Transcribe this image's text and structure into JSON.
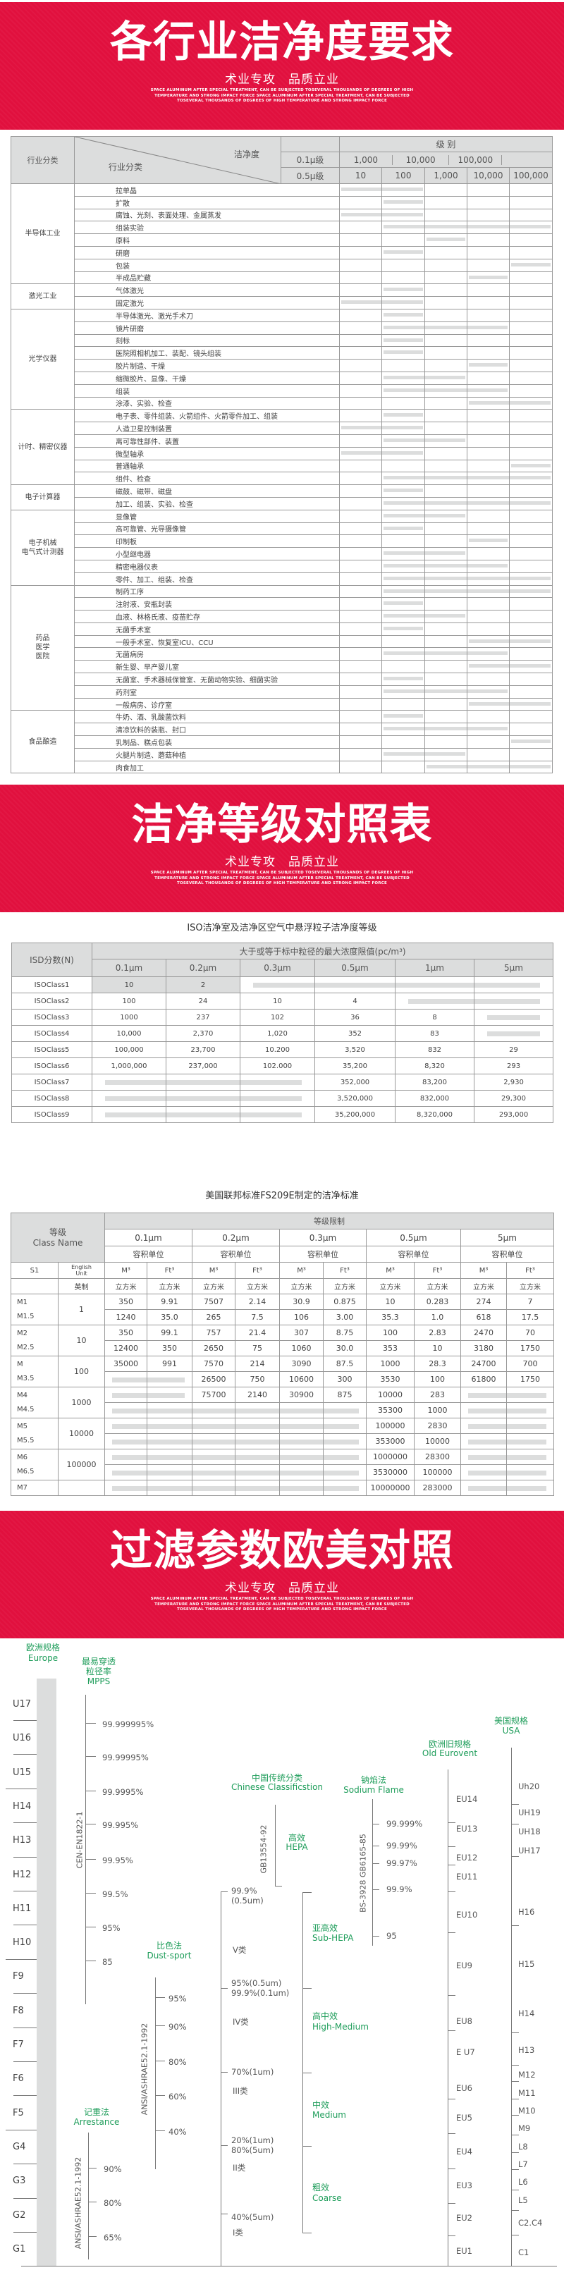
{
  "banner_en": [
    "SPACE ALUMINUM AFTER SPECIAL TREATMENT, CAN BE SUBJECTED TOSEVERAL THOUSANDS OF DEGREES OF HIGH",
    "TEMPERATURE AND STRONG IMPACT FORCE SPACE ALUMINUM AFTER SPECIAL TREATMENT, CAN BE SUBJECTED",
    "TOSEVERAL THOUSANDS OF DEGREES OF HIGH TEMPERATURE AND STRONG IMPACT FORCE"
  ],
  "banner_sub": "术业专攻　品质立业",
  "brand_color": "#e1103e",
  "section1": {
    "title": "各行业洁净度要求",
    "header": {
      "cat": "行业分类",
      "diag_top": "洁净度",
      "diag_bottom": "行业分类",
      "grade": "级 别",
      "row01": "0.1μ级",
      "row05": "0.5μ级",
      "levels01": [
        "1,000",
        "10,000",
        "100,000",
        ""
      ],
      "levels05": [
        "10",
        "100",
        "1,000",
        "10,000",
        "100,000"
      ]
    },
    "categories": [
      {
        "name": "半导体工业",
        "items": [
          {
            "name": "拉单晶",
            "range": [
              "10",
              "100"
            ]
          },
          {
            "name": "扩散",
            "range": [
              "100",
              "100"
            ]
          },
          {
            "name": "腐蚀、光刻、表面处理、金属蒸发",
            "range": [
              "10",
              "100"
            ]
          },
          {
            "name": "组装实验",
            "range": [
              "100",
              "100,000"
            ]
          },
          {
            "name": "原料",
            "range": [
              "1,000",
              "1,000"
            ]
          },
          {
            "name": "研磨",
            "range": [
              "100",
              "100"
            ]
          },
          {
            "name": "包装",
            "range": [
              "100,000",
              "100,000"
            ]
          },
          {
            "name": "半成品贮藏",
            "range": [
              "10,000",
              "10,000"
            ]
          }
        ]
      },
      {
        "name": "激光工业",
        "items": [
          {
            "name": "气体激光",
            "range": [
              "100",
              "100"
            ]
          },
          {
            "name": "固定激光",
            "range": [
              "10",
              "100"
            ]
          }
        ]
      },
      {
        "name": "光学仪器",
        "items": [
          {
            "name": "半导体激光、激光手术刀",
            "range": [
              "100",
              "100"
            ]
          },
          {
            "name": "镜片研磨",
            "range": [
              "100",
              "10,000"
            ]
          },
          {
            "name": "刻标",
            "range": [
              "100",
              "100"
            ]
          },
          {
            "name": "医院照相机加工、装配、镜头组装",
            "range": [
              "100",
              "100"
            ]
          },
          {
            "name": "胶片制造、干燥",
            "range": [
              "10,000",
              "10,000"
            ]
          },
          {
            "name": "缩微胶片、显像、干燥",
            "range": [
              "100",
              "1,000"
            ]
          },
          {
            "name": "组装",
            "range": [
              "100",
              "10,000"
            ]
          },
          {
            "name": "涂漆、实验、检查",
            "range": [
              "10,000",
              "100,000"
            ]
          }
        ]
      },
      {
        "name": "计时、精密仪器",
        "items": [
          {
            "name": "电子表、零件组装、火箭组件、火箭零件加工、组装",
            "range": [
              "100",
              "100"
            ]
          },
          {
            "name": "人造卫星控制装置",
            "range": [
              "10",
              "100"
            ]
          },
          {
            "name": "离可靠性部件、装置",
            "range": [
              "100",
              "1,000"
            ]
          },
          {
            "name": "微型轴承",
            "range": [
              "10",
              "100"
            ]
          },
          {
            "name": "普通轴承",
            "range": [
              "100,000",
              "100,000"
            ]
          },
          {
            "name": "组件、检查",
            "range": [
              "100",
              "100,000"
            ]
          }
        ]
      },
      {
        "name": "电子计算器",
        "items": [
          {
            "name": "磁鼓、磁带、磁盘",
            "range": [
              "100",
              "100"
            ]
          },
          {
            "name": "加工、组装、实验、检查",
            "range": [
              "100",
              "100,000"
            ]
          }
        ]
      },
      {
        "name": "电子机械\n电气式计测器",
        "items": [
          {
            "name": "显像管",
            "range": [
              "100",
              "1,000"
            ]
          },
          {
            "name": "高可靠管、光导摄像管",
            "range": [
              "100",
              "100"
            ]
          },
          {
            "name": "印制板",
            "range": [
              "10,000",
              "10,000"
            ]
          },
          {
            "name": "小型继电器",
            "range": [
              "100",
              "1,000"
            ]
          },
          {
            "name": "精密电器仪表",
            "range": [
              "100",
              "10,000"
            ]
          },
          {
            "name": "零件、加工、组装、检查",
            "range": [
              "100",
              "100,000"
            ]
          }
        ]
      },
      {
        "name": "药品\n医学\n医院",
        "items": [
          {
            "name": "制药工序",
            "range": [
              "100",
              "100,000"
            ]
          },
          {
            "name": "注射液、安瓶封装",
            "range": [
              "100",
              "100"
            ]
          },
          {
            "name": "血液、林格氏液、疫苗贮存",
            "range": [
              "100",
              "1,000"
            ]
          },
          {
            "name": "无菌手术室",
            "range": [
              "100",
              "100"
            ]
          },
          {
            "name": "一般手术室、恢复室ICU、CCU",
            "range": [
              "10,000",
              "100,000"
            ]
          },
          {
            "name": "无菌病房",
            "range": [
              "100",
              "10,000"
            ]
          },
          {
            "name": "新生婴、早产婴儿室",
            "range": [
              "10,000",
              "100,000"
            ]
          },
          {
            "name": "无菌室、手术器械保管室、无菌动物实验、细菌实验",
            "range": [
              "100",
              "100"
            ]
          },
          {
            "name": "药剂室",
            "range": [
              "100",
              "10,000"
            ]
          },
          {
            "name": "一般病房、诊疗室",
            "range": [
              "10,000",
              "100,000"
            ]
          }
        ]
      },
      {
        "name": "食品酿造",
        "items": [
          {
            "name": "牛奶、酒、乳酸菌饮料",
            "range": [
              "100",
              "100"
            ]
          },
          {
            "name": "清凉饮料的装瓶、封口",
            "range": [
              "100",
              "10,000"
            ]
          },
          {
            "name": "乳制品、糕点包装",
            "range": [
              "100,000",
              "100,000"
            ]
          },
          {
            "name": "火腿片制造、蘑菇种植",
            "range": [
              "100",
              "1,000"
            ]
          },
          {
            "name": "肉食加工",
            "range": [
              "1,000",
              "100,000"
            ]
          }
        ]
      }
    ]
  },
  "section2": {
    "title": "洁净等级对照表",
    "iso": {
      "title": "ISO洁净室及洁净区空气中悬浮粒子洁净度等级",
      "label_header": "ISD分数(N)",
      "group_header": "大于或等于标中粒径的最大浓度限值(pc/m³)",
      "sizes": [
        "0.1μm",
        "0.2μm",
        "0.3μm",
        "0.5μm",
        "1μm",
        "5μm"
      ],
      "rows": [
        {
          "name": "ISOClass1",
          "values": [
            "10",
            "2",
            null,
            null,
            null,
            null
          ]
        },
        {
          "name": "ISOClass2",
          "values": [
            "100",
            "24",
            "10",
            "4",
            null,
            null
          ]
        },
        {
          "name": "ISOClass3",
          "values": [
            "1000",
            "237",
            "102",
            "36",
            "8",
            null
          ]
        },
        {
          "name": "ISOClass4",
          "values": [
            "10,000",
            "2,370",
            "1,020",
            "352",
            "83",
            null
          ]
        },
        {
          "name": "ISOClass5",
          "values": [
            "100,000",
            "23,700",
            "10.200",
            "3,520",
            "832",
            "29"
          ]
        },
        {
          "name": "ISOClass6",
          "values": [
            "1,000,000",
            "237,000",
            "102.000",
            "35,200",
            "8,320",
            "293"
          ]
        },
        {
          "name": "ISOClass7",
          "values": [
            null,
            null,
            null,
            "352,000",
            "83,200",
            "2,930"
          ]
        },
        {
          "name": "ISOClass8",
          "values": [
            null,
            null,
            null,
            "3,520,000",
            "832,000",
            "29,300"
          ]
        },
        {
          "name": "ISOClass9",
          "values": [
            null,
            null,
            null,
            "35,200,000",
            "8,320,000",
            "293,000"
          ]
        }
      ]
    },
    "fs": {
      "title": "美国联邦标准FS209E制定的洁净标准",
      "class_header": "等级\nClass Name",
      "limit_header": "等级限制",
      "sizes": [
        "0.1μm",
        "0.2μm",
        "0.3μm",
        "0.5μm",
        "5μm"
      ],
      "unit_header": "容积单位",
      "s1": "S1",
      "english_unit": "English\nUnit",
      "m3": "M³",
      "ft3": "Ft³",
      "imperial": "英制",
      "cubic": "立方米",
      "groups": [
        {
          "unit": "1",
          "rows": [
            {
              "name": "M1",
              "values": [
                "350",
                "9.91",
                "7507",
                "2.14",
                "30.9",
                "0.875",
                "10",
                "0.283",
                "274",
                "7"
              ]
            },
            {
              "name": "M1.5",
              "values": [
                "1240",
                "35.0",
                "265",
                "7.5",
                "106",
                "3.00",
                "35.3",
                "1.0",
                "618",
                "17.5"
              ]
            }
          ]
        },
        {
          "unit": "10",
          "rows": [
            {
              "name": "M2",
              "values": [
                "350",
                "99.1",
                "757",
                "21.4",
                "307",
                "8.75",
                "100",
                "2.83",
                "2470",
                "70"
              ]
            },
            {
              "name": "M2.5",
              "values": [
                "12400",
                "350",
                "2650",
                "75",
                "1060",
                "30.0",
                "353",
                "10",
                "3180",
                "1750"
              ]
            }
          ]
        },
        {
          "unit": "100",
          "rows": [
            {
              "name": "M",
              "values": [
                "35000",
                "991",
                "7570",
                "214",
                "3090",
                "87.5",
                "1000",
                "28.3",
                "24700",
                "700"
              ]
            },
            {
              "name": "M3.5",
              "values": [
                null,
                null,
                "26500",
                "750",
                "10600",
                "300",
                "3530",
                "100",
                "61800",
                "1750"
              ]
            }
          ]
        },
        {
          "unit": "1000",
          "rows": [
            {
              "name": "M4",
              "values": [
                null,
                null,
                "75700",
                "2140",
                "30900",
                "875",
                "10000",
                "283",
                null,
                null
              ]
            },
            {
              "name": "M4.5",
              "values": [
                null,
                null,
                null,
                null,
                null,
                null,
                "35300",
                "1000",
                null,
                null
              ]
            }
          ]
        },
        {
          "unit": "10000",
          "rows": [
            {
              "name": "M5",
              "values": [
                null,
                null,
                null,
                null,
                null,
                null,
                "100000",
                "2830",
                null,
                null
              ]
            },
            {
              "name": "M5.5",
              "values": [
                null,
                null,
                null,
                null,
                null,
                null,
                "353000",
                "10000",
                null,
                null
              ]
            }
          ]
        },
        {
          "unit": "100000",
          "rows": [
            {
              "name": "M6",
              "values": [
                null,
                null,
                null,
                null,
                null,
                null,
                "1000000",
                "28300",
                null,
                null
              ]
            },
            {
              "name": "M6.5",
              "values": [
                null,
                null,
                null,
                null,
                null,
                null,
                "3530000",
                "100000",
                null,
                null
              ]
            }
          ]
        },
        {
          "unit": "",
          "rows": [
            {
              "name": "M7",
              "values": [
                null,
                null,
                null,
                null,
                null,
                null,
                "10000000",
                "283000",
                null,
                null
              ]
            }
          ]
        }
      ]
    }
  },
  "section3": {
    "title": "过滤参数欧美对照"
  },
  "filter_chart": {
    "accent_color": "#1e9d5a",
    "europe": {
      "title_cn": "欧洲规格",
      "title_en": "Europe",
      "grades": [
        "U17",
        "U16",
        "U15",
        "H14",
        "H13",
        "H12",
        "H11",
        "H10",
        "F9",
        "F8",
        "F7",
        "F6",
        "F5",
        "G4",
        "G3",
        "G2",
        "G1"
      ]
    },
    "mpps": {
      "title_cn": "最易穿透",
      "title_cn2": "粒径率",
      "title_en": "MPPS",
      "standard": "CEN-EN1822-1",
      "values": [
        "99.999995%",
        "99.99995%",
        "99.9995%",
        "99.995%",
        "99.95%",
        "99.5%",
        "95%",
        "85"
      ]
    },
    "dust_spot": {
      "title_cn": "比色法",
      "title_en": "Dust-sport",
      "standard": "ANSI/ASHRAE52.1-1992",
      "values": [
        "95%",
        "90%",
        "80%",
        "60%",
        "40%"
      ]
    },
    "arrestance": {
      "title_cn": "记重法",
      "title_en": "Arrestance",
      "standard": "ANSI/ASHRAE52.1-1992",
      "values": [
        "90%",
        "80%",
        "65%"
      ]
    },
    "chinese": {
      "title_cn": "中国传统分类",
      "title_en": "Chinese Classificstion",
      "standard": "GB13554-92",
      "hepa_cn": "高效",
      "hepa_en": "HEPA",
      "values": [
        "99.9%\n(0.5um)",
        "95%(0.5um)\n99.9%(0.1um)",
        "70%(1um)",
        "20%(1um)\n80%(5um)",
        "40%(5um)"
      ],
      "classes": [
        "V类",
        "IV类",
        "III类",
        "II类",
        "I类"
      ],
      "groups": [
        {
          "cn": "亚高效",
          "en": "Sub-HEPA"
        },
        {
          "cn": "高中效",
          "en": "High-Medium"
        },
        {
          "cn": "中效",
          "en": "Medium"
        },
        {
          "cn": "粗效",
          "en": "Coarse"
        }
      ]
    },
    "sodium": {
      "title_cn": "钠焰法",
      "title_en": "Sodium Flame",
      "standard": "BS-3928 GB6165-85",
      "values": [
        "99.999%",
        "99.99%",
        "99.97%",
        "99.9%",
        "95"
      ]
    },
    "old_eurovent": {
      "title_cn": "欧洲旧规格",
      "title_en": "Old Eurovent",
      "grades": [
        "EU14",
        "EU13",
        "EU12",
        "EU11",
        "EU10",
        "EU9",
        "EU8",
        "E U7",
        "EU6",
        "EU5",
        "EU4",
        "EU3",
        "EU2",
        "EU1"
      ]
    },
    "usa": {
      "title_cn": "美国规格",
      "title_en": "USA",
      "grades": [
        "Uh20",
        "UH19",
        "UH18",
        "UH17",
        "H16",
        "H15",
        "H14",
        "H13",
        "M12",
        "M11",
        "M10",
        "M9",
        "L8",
        "L7",
        "L6",
        "L5",
        "C2.C4",
        "C1"
      ]
    }
  }
}
